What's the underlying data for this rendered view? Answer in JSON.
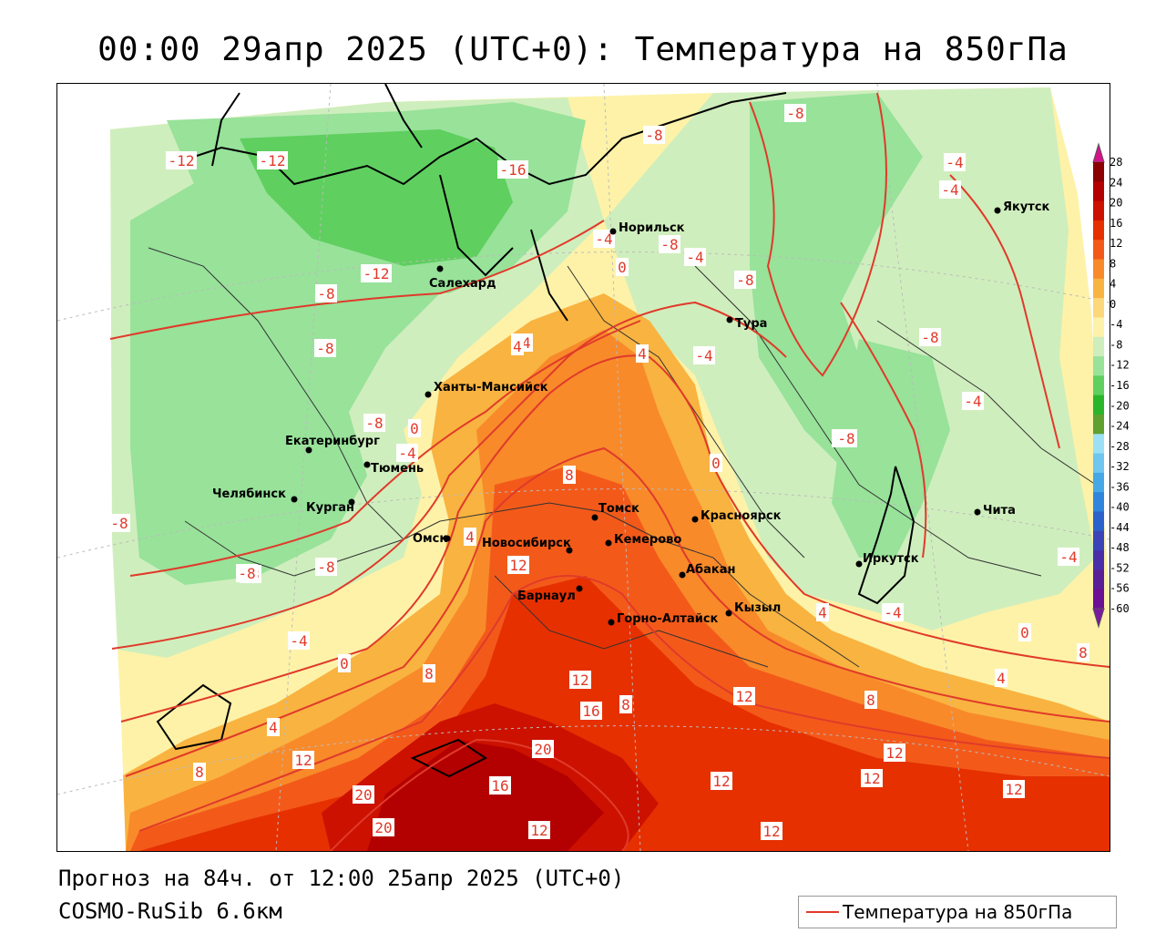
{
  "title": "00:00 29апр 2025 (UTC+0): Температура на 850гПа",
  "footer": {
    "forecast": "Прогноз на 84ч. от 12:00 25апр 2025 (UTC+0)",
    "model": "COSMO-RuSib 6.6км"
  },
  "legend": {
    "label": "Температура на 850гПа",
    "color": "#e03a2a"
  },
  "colorbar": {
    "ticks": [
      "28",
      "24",
      "20",
      "16",
      "12",
      "8",
      "4",
      "0",
      "-4",
      "-8",
      "-12",
      "-16",
      "-20",
      "-24",
      "-28",
      "-32",
      "-36",
      "-40",
      "-44",
      "-48",
      "-52",
      "-56",
      "-60"
    ],
    "colors": [
      "#8b0000",
      "#b30000",
      "#cc1100",
      "#e63000",
      "#f35a1a",
      "#f88a2a",
      "#f9b340",
      "#fcd87a",
      "#fdf2a8",
      "#cfeebd",
      "#98e29a",
      "#5fcf5f",
      "#2bb52b",
      "#5fa030",
      "#9be0f5",
      "#6fc6ee",
      "#46a8e6",
      "#2f86dc",
      "#2c62cc",
      "#3b45b8",
      "#4a2ea8",
      "#5a1e96",
      "#6c1096"
    ]
  },
  "cities": [
    {
      "name": "Салехард"
    },
    {
      "name": "Норильск"
    },
    {
      "name": "Якутск"
    },
    {
      "name": "Тура"
    },
    {
      "name": "Ханты-Мансийск"
    },
    {
      "name": "Екатеринбург"
    },
    {
      "name": "Тюмень"
    },
    {
      "name": "Челябинск"
    },
    {
      "name": "Курган"
    },
    {
      "name": "Омск"
    },
    {
      "name": "Новосибирск"
    },
    {
      "name": "Томск"
    },
    {
      "name": "Кемерово"
    },
    {
      "name": "Красноярск"
    },
    {
      "name": "Барнаул"
    },
    {
      "name": "Абакан"
    },
    {
      "name": "Горно-Алтайск"
    },
    {
      "name": "Кызыл"
    },
    {
      "name": "Иркутск"
    },
    {
      "name": "Чита"
    }
  ],
  "isotherm_labels": [
    "-12",
    "-12",
    "-16",
    "-8",
    "-8",
    "-4",
    "-4",
    "-8",
    "-8",
    "-8",
    "-12",
    "-8",
    "-8",
    "-4",
    "-8",
    "-4",
    "-8",
    "-4",
    "0",
    "4",
    "4",
    "-4",
    "-8",
    "-4",
    "0",
    "8",
    "0",
    "-4",
    "-8",
    "-8",
    "-8",
    "-8",
    "4",
    "12",
    "-4",
    "0",
    "8",
    "-4",
    "0",
    "-4",
    "8",
    "4",
    "12",
    "16",
    "8",
    "12",
    "12",
    "20",
    "16",
    "20",
    "20",
    "12",
    "12",
    "12",
    "12",
    "12",
    "12",
    "4",
    "0",
    "4",
    "-4",
    "8",
    "8"
  ]
}
